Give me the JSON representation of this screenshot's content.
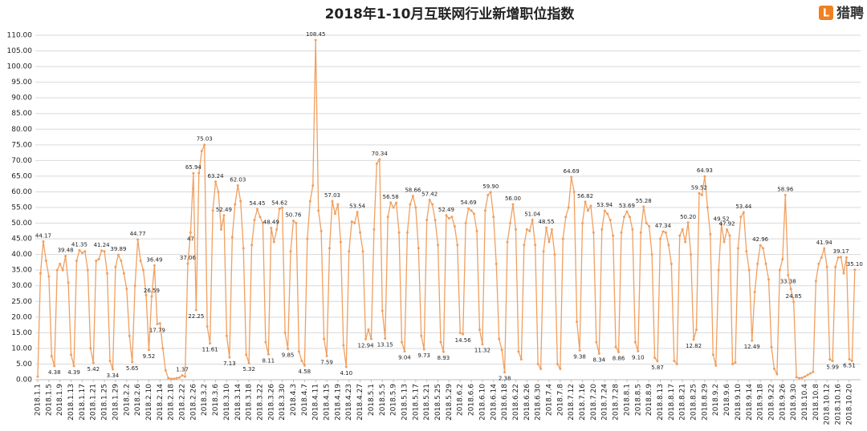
{
  "chart_data": {
    "type": "line",
    "title": "2018年1-10月互联网行业新增职位指数",
    "logo": "猎聘",
    "categories": [
      "2018.1.1",
      null,
      null,
      null,
      "2018.1.5",
      null,
      null,
      null,
      "2018.1.9",
      null,
      null,
      null,
      "2018.1.13",
      null,
      null,
      null,
      "2018.1.17",
      null,
      null,
      null,
      "2018.1.21",
      null,
      null,
      null,
      "2018.1.25",
      null,
      null,
      null,
      "2018.1.29",
      null,
      null,
      null,
      "2018.2.2",
      null,
      null,
      null,
      "2018.2.6",
      null,
      null,
      null,
      "2018.2.10",
      null,
      null,
      null,
      "2018.2.14",
      null,
      null,
      null,
      "2018.2.18",
      null,
      null,
      null,
      "2018.2.22",
      null,
      null,
      null,
      "2018.2.26",
      null,
      null,
      null,
      "2018.3.2",
      null,
      null,
      null,
      "2018.3.6",
      null,
      null,
      null,
      "2018.3.10",
      null,
      null,
      null,
      "2018.3.14",
      null,
      null,
      null,
      "2018.3.18",
      null,
      null,
      null,
      "2018.3.22",
      null,
      null,
      null,
      "2018.3.26",
      null,
      null,
      null,
      "2018.3.30",
      null,
      null,
      null,
      "2018.4.3",
      null,
      null,
      null,
      "2018.4.7",
      null,
      null,
      null,
      "2018.4.11",
      null,
      null,
      null,
      "2018.4.15",
      null,
      null,
      null,
      "2018.4.19",
      null,
      null,
      null,
      "2018.4.23",
      null,
      null,
      null,
      "2018.4.27",
      null,
      null,
      null,
      "2018.5.1",
      null,
      null,
      null,
      "2018.5.5",
      null,
      null,
      null,
      "2018.5.9",
      null,
      null,
      null,
      "2018.5.13",
      null,
      null,
      null,
      "2018.5.17",
      null,
      null,
      null,
      "2018.5.21",
      null,
      null,
      null,
      "2018.5.25",
      null,
      null,
      null,
      "2018.5.29",
      null,
      null,
      null,
      "2018.6.2",
      null,
      null,
      null,
      "2018.6.6",
      null,
      null,
      null,
      "2018.6.10",
      null,
      null,
      null,
      "2018.6.14",
      null,
      null,
      null,
      "2018.6.18",
      null,
      null,
      null,
      "2018.6.22",
      null,
      null,
      null,
      "2018.6.26",
      null,
      null,
      null,
      "2018.6.30",
      null,
      null,
      null,
      "2018.7.4",
      null,
      null,
      null,
      "2018.7.8",
      null,
      null,
      null,
      "2018.7.12",
      null,
      null,
      null,
      "2018.7.16",
      null,
      null,
      null,
      "2018.7.20",
      null,
      null,
      null,
      "2018.7.24",
      null,
      null,
      null,
      "2018.7.28",
      null,
      null,
      null,
      "2018.8.1",
      null,
      null,
      null,
      "2018.8.5",
      null,
      null,
      null,
      "2018.8.9",
      null,
      null,
      null,
      "2018.8.13",
      null,
      null,
      null,
      "2018.8.17",
      null,
      null,
      null,
      "2018.8.21",
      null,
      null,
      null,
      "2018.8.25",
      null,
      null,
      null,
      "2018.8.29",
      null,
      null,
      null,
      "2018.9.2",
      null,
      null,
      null,
      "2018.9.6",
      null,
      null,
      null,
      "2018.9.10",
      null,
      null,
      null,
      "2018.9.14",
      null,
      null,
      null,
      "2018.9.18",
      null,
      null,
      null,
      "2018.9.22",
      null,
      null,
      null,
      "2018.9.26",
      null,
      null,
      null,
      "2018.9.30",
      null,
      null,
      null,
      "2018.10.4",
      null,
      null,
      null,
      "2018.10.8",
      null,
      null,
      null,
      "2018.10.12",
      null,
      null,
      null,
      "2018.10.16",
      null,
      null,
      null,
      "2018.10.20",
      null,
      null
    ],
    "series": [
      {
        "color": "#f0a060",
        "values": [
          1,
          34,
          44.17,
          38,
          33,
          7.5,
          4.38,
          35,
          37,
          35,
          39.48,
          31,
          8,
          4.39,
          38,
          41.35,
          40.5,
          41,
          35,
          10,
          5.42,
          38,
          38.5,
          41.24,
          41,
          34,
          6,
          3.34,
          36,
          39.89,
          38,
          34,
          29,
          14,
          5.65,
          30,
          44.77,
          38,
          35,
          27,
          9.52,
          26.59,
          36.49,
          17.79,
          18,
          10,
          3,
          0.5,
          0.3,
          0.3,
          0.5,
          0.7,
          1.37,
          1,
          37.06,
          47,
          65.94,
          22.25,
          66,
          73,
          75.03,
          17,
          11.61,
          54,
          63.24,
          60,
          48,
          52.49,
          14,
          7.13,
          45.5,
          56,
          62.03,
          57,
          42,
          8,
          5.32,
          43,
          51,
          54.45,
          52,
          50,
          12,
          8.11,
          48.49,
          44,
          48,
          54.62,
          55,
          15,
          9.85,
          41,
          50.76,
          50,
          9,
          6,
          4.58,
          45,
          57,
          62,
          108.45,
          54,
          47.5,
          13,
          7.59,
          42,
          57.03,
          53,
          56,
          44,
          11,
          4.1,
          41,
          50.5,
          50,
          53.54,
          47,
          41,
          12.94,
          16,
          13,
          48,
          69,
          70.34,
          22,
          13.15,
          52,
          56.58,
          55,
          56.5,
          47,
          12,
          9.04,
          47,
          56,
          58.66,
          55,
          42,
          14,
          9.73,
          51,
          57.42,
          56,
          51,
          43,
          12,
          8.93,
          52.49,
          51.5,
          52,
          49,
          43,
          15,
          14.56,
          50,
          54.69,
          54,
          53,
          47.5,
          16,
          11.32,
          54,
          59,
          59.9,
          52,
          37,
          13,
          9.5,
          2.38,
          44,
          50,
          56,
          48,
          9,
          6.5,
          43,
          48,
          47.5,
          51.04,
          43,
          5,
          3.5,
          41,
          48.55,
          44,
          48,
          40,
          5,
          3.5,
          45,
          52,
          55,
          64.69,
          60,
          18.5,
          9.38,
          50,
          56.82,
          54,
          55.5,
          47,
          12,
          8.34,
          48,
          53.94,
          53,
          51,
          46,
          10.5,
          8.86,
          47,
          52,
          53.69,
          52,
          48,
          12,
          9.1,
          47,
          55.28,
          50,
          49,
          40,
          7,
          5.87,
          45,
          47.34,
          47,
          43,
          37,
          6,
          5,
          46,
          48,
          44,
          50.2,
          40,
          12.82,
          16,
          59.52,
          59,
          64.93,
          55,
          46.5,
          8,
          4.5,
          35,
          49.52,
          44,
          47.92,
          46,
          5,
          5.5,
          42,
          52,
          53.44,
          41,
          35,
          12.49,
          28,
          37,
          42.96,
          42,
          37,
          32,
          10.5,
          3.5,
          1.8,
          35,
          38.5,
          58.96,
          33.38,
          29,
          24.85,
          0.8,
          0.5,
          0.6,
          1,
          1.5,
          2,
          2.5,
          31.5,
          37,
          39,
          41.94,
          36,
          6.5,
          5.99,
          36,
          39,
          39.17,
          34,
          39,
          6.51,
          6,
          35.1
        ],
        "value_labels": [
          null,
          null,
          "44.17",
          null,
          null,
          null,
          "4.38",
          null,
          null,
          null,
          "39.48",
          null,
          null,
          "4.39",
          null,
          "41.35",
          null,
          null,
          null,
          null,
          "5.42",
          null,
          null,
          "41.24",
          null,
          null,
          null,
          "3.34",
          null,
          "39.89",
          null,
          null,
          null,
          null,
          "5.65",
          null,
          "44.77",
          null,
          null,
          null,
          "9.52",
          "26.59",
          "36.49",
          "17.79",
          null,
          null,
          null,
          null,
          null,
          null,
          null,
          null,
          "1.37",
          null,
          "37.06",
          "47",
          "65.94",
          "22.25",
          null,
          null,
          "75.03",
          null,
          "11.61",
          null,
          "63.24",
          null,
          null,
          "52.49",
          null,
          "7.13",
          null,
          null,
          "62.03",
          null,
          null,
          null,
          "5.32",
          null,
          null,
          "54.45",
          null,
          null,
          null,
          "8.11",
          "48.49",
          null,
          null,
          "54.62",
          null,
          null,
          "9.85",
          null,
          "50.76",
          null,
          null,
          null,
          "4.58",
          null,
          null,
          null,
          "108.45",
          null,
          null,
          null,
          "7.59",
          null,
          "57.03",
          null,
          null,
          null,
          null,
          "4.10",
          null,
          null,
          null,
          "53.54",
          null,
          null,
          "12.94",
          null,
          null,
          null,
          null,
          "70.34",
          null,
          "13.15",
          null,
          "56.58",
          null,
          null,
          null,
          null,
          "9.04",
          null,
          null,
          "58.66",
          null,
          null,
          null,
          "9.73",
          null,
          "57.42",
          null,
          null,
          null,
          null,
          "8.93",
          "52.49",
          null,
          null,
          null,
          null,
          null,
          "14.56",
          null,
          "54.69",
          null,
          null,
          null,
          null,
          "11.32",
          null,
          null,
          "59.90",
          null,
          null,
          null,
          null,
          "2.38",
          null,
          null,
          "56.00",
          null,
          null,
          null,
          null,
          null,
          null,
          "51.04",
          null,
          null,
          null,
          null,
          "48.55",
          null,
          null,
          null,
          null,
          null,
          null,
          null,
          null,
          "64.69",
          null,
          null,
          "9.38",
          null,
          "56.82",
          null,
          null,
          null,
          null,
          "8.34",
          null,
          "53.94",
          null,
          null,
          null,
          null,
          "8.86",
          null,
          null,
          "53.69",
          null,
          null,
          null,
          "9.10",
          null,
          "55.28",
          null,
          null,
          null,
          null,
          "5.87",
          null,
          "47.34",
          null,
          null,
          null,
          null,
          null,
          null,
          null,
          null,
          "50.20",
          null,
          "12.82",
          null,
          "59.52",
          null,
          "64.93",
          null,
          null,
          null,
          null,
          null,
          "49.52",
          null,
          "47.92",
          null,
          null,
          null,
          null,
          null,
          "53.44",
          null,
          null,
          "12.49",
          null,
          null,
          "42.96",
          null,
          null,
          null,
          null,
          null,
          null,
          null,
          null,
          "58.96",
          "33.38",
          null,
          "24.85",
          null,
          null,
          null,
          null,
          null,
          null,
          null,
          null,
          null,
          null,
          "41.94",
          null,
          null,
          "5.99",
          null,
          null,
          "39.17",
          null,
          null,
          "6.51",
          null,
          "35.10"
        ]
      }
    ],
    "ylim": [
      0,
      110
    ],
    "yticks": [
      {
        "value": 0,
        "label": "0.00"
      },
      {
        "value": 5,
        "label": "5.00"
      },
      {
        "value": 10,
        "label": "10.00"
      },
      {
        "value": 15,
        "label": "15.00"
      },
      {
        "value": 20,
        "label": "20.00"
      },
      {
        "value": 25,
        "label": "25.00"
      },
      {
        "value": 30,
        "label": "30.00"
      },
      {
        "value": 35,
        "label": "35.00"
      },
      {
        "value": 40,
        "label": "40.00"
      },
      {
        "value": 45,
        "label": "45.00"
      },
      {
        "value": 50,
        "label": "50.00"
      },
      {
        "value": 55,
        "label": "55.00"
      },
      {
        "value": 60,
        "label": "60.00"
      },
      {
        "value": 65,
        "label": "65.00"
      },
      {
        "value": 70,
        "label": "70.00"
      },
      {
        "value": 75,
        "label": "75.00"
      },
      {
        "value": 80,
        "label": "80.00"
      },
      {
        "value": 85,
        "label": "85.00"
      },
      {
        "value": 90,
        "label": "90.00"
      },
      {
        "value": 95,
        "label": "95.00"
      },
      {
        "value": 100,
        "label": "100.00"
      },
      {
        "value": 105,
        "label": "105.00"
      },
      {
        "value": 110,
        "label": "110.00"
      }
    ],
    "grid": true
  }
}
